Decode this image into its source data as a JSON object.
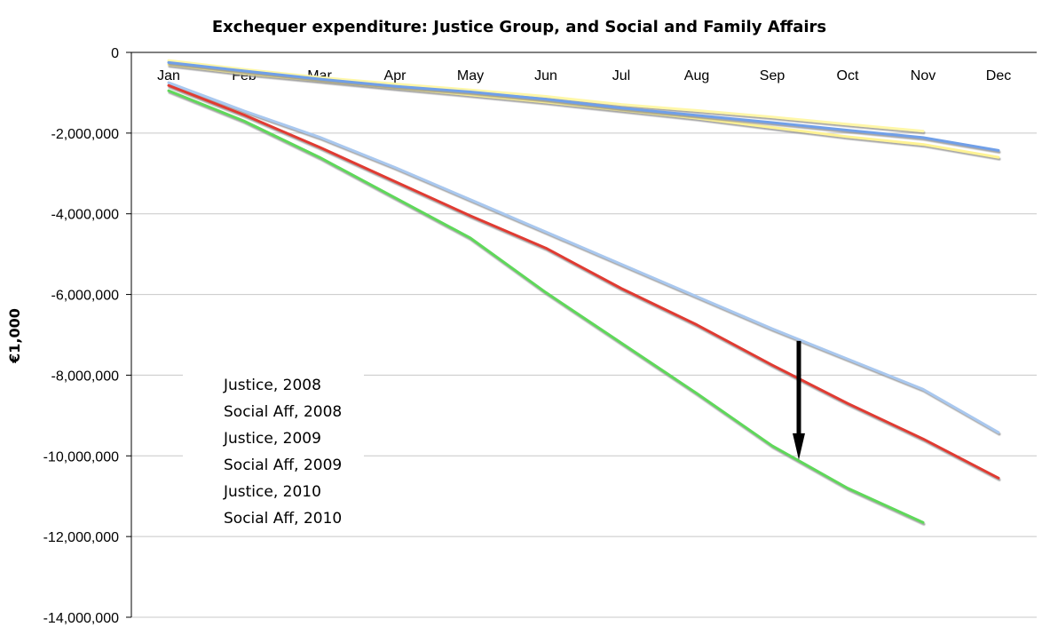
{
  "chart_data": {
    "type": "line",
    "title": "Exchequer expenditure: Justice Group, and Social and Family Affairs",
    "xlabel": "",
    "ylabel": "€1,000",
    "categories": [
      "Jan",
      "Feb",
      "Mar",
      "Apr",
      "May",
      "Jun",
      "Jul",
      "Aug",
      "Sep",
      "Oct",
      "Nov",
      "Dec"
    ],
    "ylim": [
      -14000000,
      0
    ],
    "yticks": [
      0,
      -2000000,
      -4000000,
      -6000000,
      -8000000,
      -10000000,
      -12000000,
      -14000000
    ],
    "ytick_labels": [
      "0",
      "-2,000,000",
      "-4,000,000",
      "-6,000,000",
      "-8,000,000",
      "-10,000,000",
      "-12,000,000",
      "-14,000,000"
    ],
    "grid": true,
    "legend_position": "lower-left",
    "series": [
      {
        "name": "Justice, 2008",
        "color": "#fff7a8",
        "values": [
          -200000,
          -420000,
          -620000,
          -780000,
          -930000,
          -1090000,
          -1290000,
          -1440000,
          -1600000,
          -1780000,
          -1950000,
          null
        ]
      },
      {
        "name": "Social Aff, 2008",
        "color": "#a9c8ef",
        "values": [
          -750000,
          -1450000,
          -2100000,
          -2850000,
          -3650000,
          -4450000,
          -5250000,
          -6050000,
          -6850000,
          -7600000,
          -8350000,
          -9420000
        ]
      },
      {
        "name": "Justice, 2009",
        "color": "#6f9fe8",
        "values": [
          -250000,
          -460000,
          -660000,
          -840000,
          -980000,
          -1160000,
          -1380000,
          -1560000,
          -1740000,
          -1930000,
          -2110000,
          -2430000
        ]
      },
      {
        "name": "Social Aff, 2009",
        "color": "#e03a32",
        "values": [
          -820000,
          -1550000,
          -2350000,
          -3200000,
          -4050000,
          -4850000,
          -5850000,
          -6750000,
          -7750000,
          -8700000,
          -9580000,
          -10550000
        ]
      },
      {
        "name": "Justice, 2010",
        "color": "#fff394",
        "values": [
          -300000,
          -520000,
          -700000,
          -880000,
          -1050000,
          -1230000,
          -1430000,
          -1630000,
          -1860000,
          -2090000,
          -2280000,
          -2600000
        ]
      },
      {
        "name": "Social Aff, 2010",
        "color": "#5fd85a",
        "values": [
          -950000,
          -1700000,
          -2600000,
          -3600000,
          -4600000,
          -5950000,
          -7200000,
          -8450000,
          -9750000,
          -10800000,
          -11650000,
          null
        ]
      }
    ],
    "annotations": [
      {
        "type": "arrow",
        "color": "#000000",
        "category": "Sep",
        "from_value": -7150000,
        "to_value": -10100000
      }
    ]
  }
}
